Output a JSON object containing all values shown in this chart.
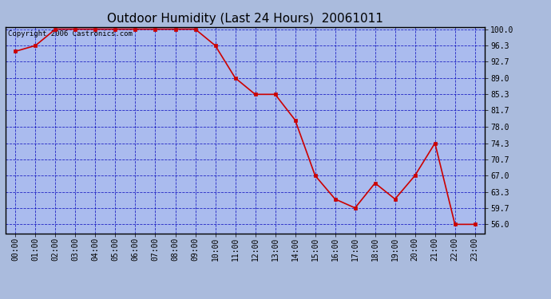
{
  "title": "Outdoor Humidity (Last 24 Hours)  20061011",
  "copyright": "Copyright 2006 Castronics.com",
  "x_labels": [
    "00:00",
    "01:00",
    "02:00",
    "03:00",
    "04:00",
    "05:00",
    "06:00",
    "07:00",
    "08:00",
    "09:00",
    "10:00",
    "11:00",
    "12:00",
    "13:00",
    "14:00",
    "15:00",
    "16:00",
    "17:00",
    "18:00",
    "19:00",
    "20:00",
    "21:00",
    "22:00",
    "23:00"
  ],
  "x_values": [
    0,
    1,
    2,
    3,
    4,
    5,
    6,
    7,
    8,
    9,
    10,
    11,
    12,
    13,
    14,
    15,
    16,
    17,
    18,
    19,
    20,
    21,
    22,
    23
  ],
  "y_values": [
    95.0,
    96.3,
    100.0,
    100.0,
    100.0,
    100.0,
    100.0,
    100.0,
    100.0,
    100.0,
    96.3,
    89.0,
    85.3,
    85.3,
    79.5,
    67.0,
    61.7,
    59.7,
    65.3,
    61.7,
    67.0,
    74.3,
    56.0,
    56.0
  ],
  "line_color": "#cc0000",
  "marker": "s",
  "marker_size": 3,
  "marker_color": "#cc0000",
  "bg_color": "#aabbdd",
  "plot_bg_color": "#aabbee",
  "grid_color": "#0000bb",
  "grid_style": "--",
  "grid_alpha": 0.8,
  "ylim_min": 56.0,
  "ylim_max": 100.0,
  "ytick_values": [
    56.0,
    59.7,
    63.3,
    67.0,
    70.7,
    74.3,
    78.0,
    81.7,
    85.3,
    89.0,
    92.7,
    96.3,
    100.0
  ],
  "title_fontsize": 11,
  "tick_fontsize": 7,
  "copyright_fontsize": 6.5,
  "border_color": "#000000",
  "fig_width": 6.9,
  "fig_height": 3.75,
  "fig_dpi": 100
}
